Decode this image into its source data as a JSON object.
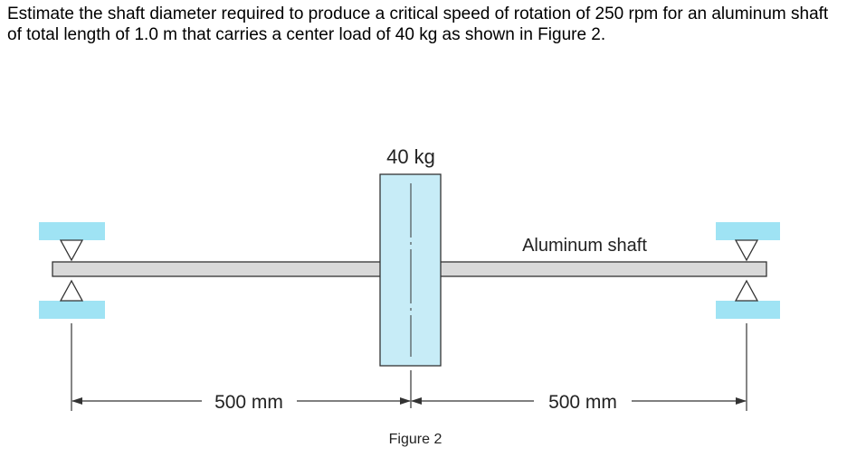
{
  "problem": {
    "text": "Estimate the shaft diameter required to produce a critical speed of rotation of 250 rpm for an aluminum shaft of total length of 1.0 m that carries a center load of 40 kg as shown in Figure 2."
  },
  "figure": {
    "load_label": "40 kg",
    "shaft_label": "Aluminum shaft",
    "left_dimension": "500 mm",
    "right_dimension": "500 mm",
    "caption": "Figure 2"
  },
  "colors": {
    "support_blue": "#9fe3f4",
    "mass_fill": "#c7ecf7",
    "shaft_fill": "#d9d9d9",
    "line": "#333333"
  }
}
